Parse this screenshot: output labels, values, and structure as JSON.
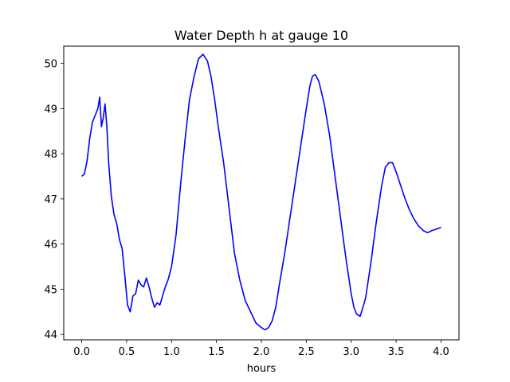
{
  "chart_data": {
    "type": "line",
    "title": "Water Depth h at gauge 10",
    "xlabel": "hours",
    "ylabel": "",
    "xlim": [
      -0.2,
      4.2
    ],
    "ylim": [
      43.88,
      50.38
    ],
    "xticks": [
      0.0,
      0.5,
      1.0,
      1.5,
      2.0,
      2.5,
      3.0,
      3.5,
      4.0
    ],
    "xtick_labels": [
      "0.0",
      "0.5",
      "1.0",
      "1.5",
      "2.0",
      "2.5",
      "3.0",
      "3.5",
      "4.0"
    ],
    "yticks": [
      44,
      45,
      46,
      47,
      48,
      49,
      50
    ],
    "ytick_labels": [
      "44",
      "45",
      "46",
      "47",
      "48",
      "49",
      "50"
    ],
    "grid": false,
    "series": [
      {
        "color": "#0000ff",
        "x": [
          0.0,
          0.03,
          0.06,
          0.09,
          0.12,
          0.15,
          0.18,
          0.2,
          0.22,
          0.24,
          0.26,
          0.28,
          0.3,
          0.33,
          0.36,
          0.39,
          0.42,
          0.45,
          0.48,
          0.51,
          0.54,
          0.57,
          0.6,
          0.63,
          0.66,
          0.69,
          0.72,
          0.75,
          0.78,
          0.81,
          0.84,
          0.87,
          0.9,
          0.93,
          0.96,
          1.0,
          1.05,
          1.1,
          1.15,
          1.2,
          1.25,
          1.3,
          1.35,
          1.4,
          1.44,
          1.48,
          1.52,
          1.58,
          1.64,
          1.7,
          1.76,
          1.82,
          1.88,
          1.94,
          2.0,
          2.04,
          2.08,
          2.12,
          2.16,
          2.2,
          2.26,
          2.32,
          2.38,
          2.44,
          2.5,
          2.54,
          2.57,
          2.6,
          2.64,
          2.7,
          2.76,
          2.82,
          2.88,
          2.94,
          3.0,
          3.03,
          3.06,
          3.1,
          3.16,
          3.22,
          3.28,
          3.34,
          3.38,
          3.42,
          3.46,
          3.5,
          3.55,
          3.6,
          3.65,
          3.7,
          3.75,
          3.8,
          3.85,
          3.9,
          3.95,
          4.0
        ],
        "y": [
          47.5,
          47.55,
          47.85,
          48.35,
          48.7,
          48.85,
          49.0,
          49.25,
          48.6,
          48.8,
          49.1,
          48.6,
          47.8,
          47.05,
          46.65,
          46.45,
          46.1,
          45.9,
          45.3,
          44.65,
          44.5,
          44.85,
          44.9,
          45.2,
          45.1,
          45.05,
          45.25,
          45.05,
          44.8,
          44.6,
          44.7,
          44.65,
          44.85,
          45.05,
          45.2,
          45.5,
          46.2,
          47.3,
          48.3,
          49.2,
          49.7,
          50.1,
          50.2,
          50.05,
          49.7,
          49.2,
          48.6,
          47.8,
          46.8,
          45.8,
          45.2,
          44.75,
          44.5,
          44.25,
          44.15,
          44.1,
          44.15,
          44.3,
          44.6,
          45.1,
          45.8,
          46.6,
          47.4,
          48.2,
          49.0,
          49.5,
          49.72,
          49.75,
          49.6,
          49.1,
          48.4,
          47.5,
          46.6,
          45.7,
          44.9,
          44.6,
          44.45,
          44.4,
          44.8,
          45.6,
          46.5,
          47.3,
          47.7,
          47.8,
          47.8,
          47.6,
          47.3,
          47.0,
          46.75,
          46.55,
          46.4,
          46.3,
          46.25,
          46.3,
          46.33,
          46.37
        ]
      }
    ]
  }
}
